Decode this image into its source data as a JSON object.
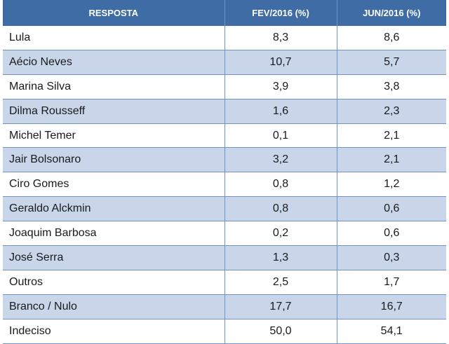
{
  "table": {
    "headers": [
      "RESPOSTA",
      "FEV/2016 (%)",
      "JUN/2016 (%)"
    ],
    "rows": [
      [
        "Lula",
        "8,3",
        "8,6"
      ],
      [
        "Aécio Neves",
        "10,7",
        "5,7"
      ],
      [
        "Marina Silva",
        "3,9",
        "3,8"
      ],
      [
        "Dilma Rousseff",
        "1,6",
        "2,3"
      ],
      [
        "Michel Temer",
        "0,1",
        "2,1"
      ],
      [
        "Jair Bolsonaro",
        "3,2",
        "2,1"
      ],
      [
        "Ciro Gomes",
        "0,8",
        "1,2"
      ],
      [
        "Geraldo Alckmin",
        "0,8",
        "0,6"
      ],
      [
        "Joaquim Barbosa",
        "0,2",
        "0,6"
      ],
      [
        "José Serra",
        "1,3",
        "0,3"
      ],
      [
        "Outros",
        "2,5",
        "1,7"
      ],
      [
        "Branco / Nulo",
        "17,7",
        "16,7"
      ],
      [
        "Indeciso",
        "50,0",
        "54,1"
      ]
    ]
  },
  "colors": {
    "header_bg": "#3f6ca5",
    "header_text": "#ffffff",
    "alt_row_bg": "#c9d6ea",
    "border": "#6f93c2"
  }
}
